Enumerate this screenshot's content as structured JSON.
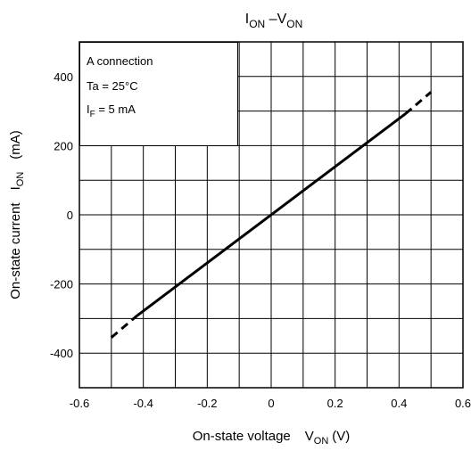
{
  "chart_data": {
    "type": "line",
    "title": {
      "main_sym": "I",
      "main_sub": "ON",
      "sep": " –",
      "v_sym": "V",
      "v_sub": "ON"
    },
    "xlabel": {
      "text": "On-state voltage",
      "sym": "V",
      "sub": "ON",
      "unit": "(V)"
    },
    "ylabel": {
      "text": "On-state current",
      "sym": "I",
      "sub": "ON",
      "unit": "(mA)"
    },
    "xlim": [
      -0.6,
      0.6
    ],
    "ylim": [
      -500,
      500
    ],
    "x_ticks": [
      -0.6,
      -0.4,
      -0.2,
      0,
      0.2,
      0.4,
      0.6
    ],
    "x_tick_labels": [
      "-0.6",
      "-0.4",
      "-0.2",
      "0",
      "0.2",
      "0.4",
      "0.6"
    ],
    "y_ticks": [
      -400,
      -200,
      0,
      200,
      400
    ],
    "y_tick_labels": [
      "-400",
      "-200",
      "0",
      "200",
      "400"
    ],
    "grid": true,
    "grid_x_step": 0.1,
    "grid_y_step": 100,
    "legend": {
      "placement": "top-left",
      "line1": "A connection",
      "line2": "Ta = 25°C",
      "line3_sym": "I",
      "line3_sub": "F",
      "line3_rest": " = 5 mA"
    },
    "series": [
      {
        "style": "solid",
        "color": "#000000",
        "x": [
          -0.42,
          0.42
        ],
        "y": [
          -292,
          292
        ]
      },
      {
        "style": "dashed",
        "color": "#000000",
        "x": [
          -0.5,
          -0.42
        ],
        "y": [
          -355,
          -292
        ]
      },
      {
        "style": "dashed",
        "color": "#000000",
        "x": [
          0.42,
          0.5
        ],
        "y": [
          292,
          355
        ]
      }
    ]
  }
}
